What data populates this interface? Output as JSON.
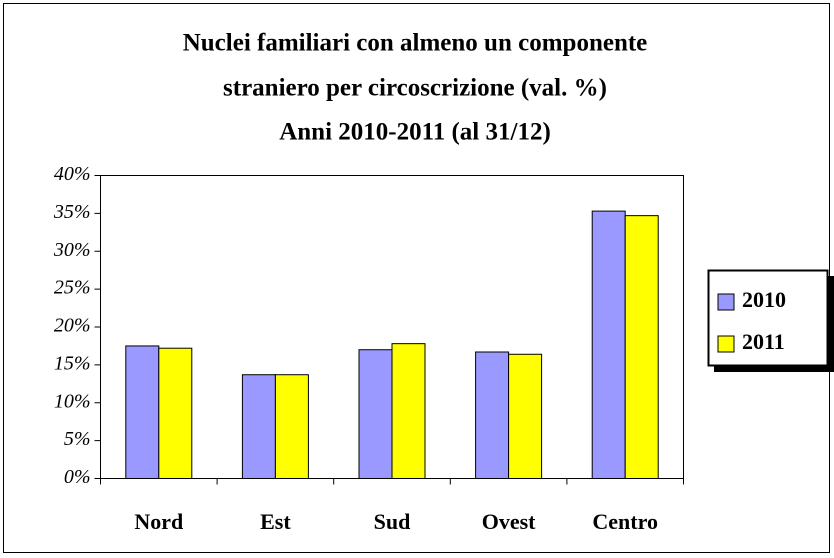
{
  "chart_data": {
    "type": "bar",
    "title": [
      "Nuclei familiari con almeno un componente",
      "straniero per circoscrizione (val. %)",
      "Anni 2010-2011 (al 31/12)"
    ],
    "categories": [
      "Nord",
      "Est",
      "Sud",
      "Ovest",
      "Centro"
    ],
    "series": [
      {
        "name": "2010",
        "color": "#9999ff",
        "values": [
          17.5,
          13.7,
          17.0,
          16.7,
          35.3
        ]
      },
      {
        "name": "2011",
        "color": "#ffff00",
        "values": [
          17.2,
          13.7,
          17.8,
          16.4,
          34.7
        ]
      }
    ],
    "ylim": [
      0,
      40
    ],
    "yticks": [
      {
        "value": 0,
        "label": "0%"
      },
      {
        "value": 5,
        "label": "5%"
      },
      {
        "value": 10,
        "label": "10%"
      },
      {
        "value": 15,
        "label": "15%"
      },
      {
        "value": 20,
        "label": "20%"
      },
      {
        "value": 25,
        "label": "25%"
      },
      {
        "value": 30,
        "label": "30%"
      },
      {
        "value": 35,
        "label": "35%"
      },
      {
        "value": 40,
        "label": "40%"
      }
    ],
    "grid": false,
    "legend": "right"
  }
}
